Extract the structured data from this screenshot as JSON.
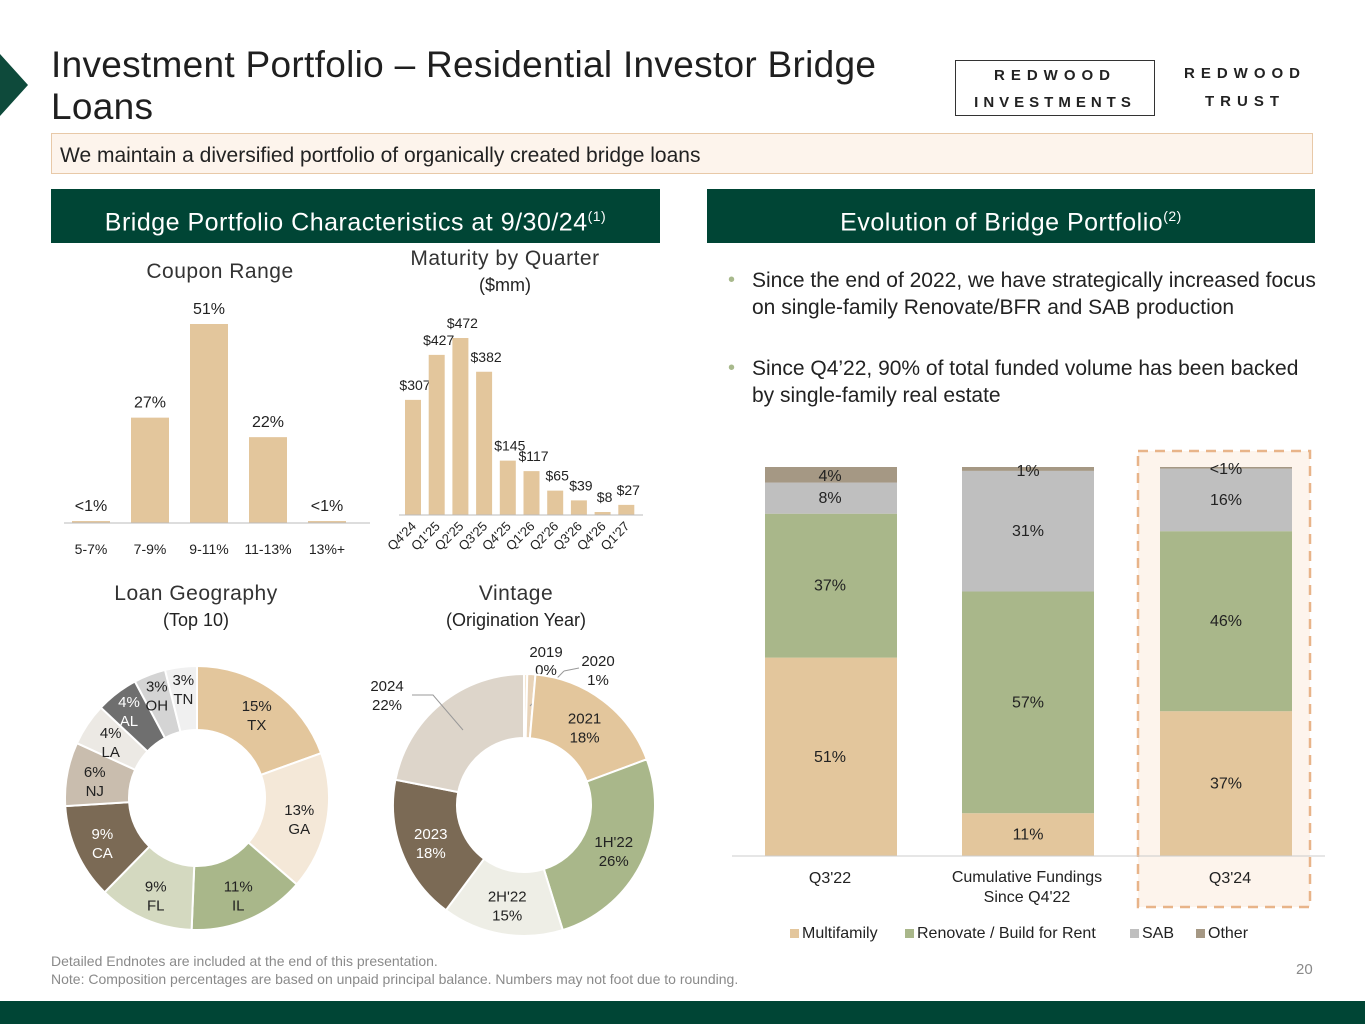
{
  "title": "Investment Portfolio – Residential Investor Bridge Loans",
  "logos": {
    "ri_line1": "REDWOOD",
    "ri_line2": "INVESTMENTS",
    "rt_line1": "REDWOOD",
    "rt_line2": "TRUST"
  },
  "banner": "We maintain a diversified portfolio of organically created bridge loans",
  "left_header": {
    "text": "Bridge Portfolio Characteristics at 9/30/24",
    "sup": "(1)"
  },
  "right_header": {
    "text": "Evolution of Bridge Portfolio",
    "sup": "(2)"
  },
  "bullets": [
    "Since the end of 2022, we have strategically increased focus on single-family Renovate/BFR and SAB production",
    "Since Q4’22, 90% of total funded volume has been backed by single-family real estate"
  ],
  "colors": {
    "dark_green": "#004535",
    "tan": "#e3c69c",
    "sage": "#a9b78a",
    "grey": "#bfbfbf",
    "taupe": "#a59884",
    "highlight": "#e8b489"
  },
  "chart_data": [
    {
      "id": "coupon",
      "type": "bar",
      "title": "Coupon Range",
      "categories": [
        "5-7%",
        "7-9%",
        "9-11%",
        "11-13%",
        "13%+"
      ],
      "values": [
        0.5,
        27,
        51,
        22,
        0.5
      ],
      "labels": [
        "<1%",
        "27%",
        "51%",
        "22%",
        "<1%"
      ],
      "ylim": [
        0,
        51
      ]
    },
    {
      "id": "maturity",
      "type": "bar",
      "title": "Maturity by Quarter",
      "subtitle": "($mm)",
      "categories": [
        "Q4'24",
        "Q1'25",
        "Q2'25",
        "Q3'25",
        "Q4'25",
        "Q1'26",
        "Q2'26",
        "Q3'26",
        "Q4'26",
        "Q1'27"
      ],
      "values": [
        307,
        427,
        472,
        382,
        145,
        117,
        65,
        39,
        8,
        27
      ],
      "labels": [
        "$307",
        "$427",
        "$472",
        "$382",
        "$145",
        "$117",
        "$65",
        "$39",
        "$8",
        "$27"
      ],
      "ylim": [
        0,
        472
      ]
    },
    {
      "id": "geography",
      "type": "pie",
      "title": "Loan Geography",
      "subtitle": "(Top 10)",
      "slices": [
        {
          "pct_label": "15%",
          "name": "TX",
          "value": 15,
          "color": "#e3c69c"
        },
        {
          "pct_label": "13%",
          "name": "GA",
          "value": 13,
          "color": "#f4e8d8"
        },
        {
          "pct_label": "11%",
          "name": "IL",
          "value": 11,
          "color": "#a9b78a"
        },
        {
          "pct_label": "9%",
          "name": "FL",
          "value": 9,
          "color": "#d4d9c0"
        },
        {
          "pct_label": "9%",
          "name": "CA",
          "value": 9,
          "color": "#7b6a55"
        },
        {
          "pct_label": "6%",
          "name": "NJ",
          "value": 6,
          "color": "#c9bdae"
        },
        {
          "pct_label": "4%",
          "name": "LA",
          "value": 4,
          "color": "#ece9e4"
        },
        {
          "pct_label": "4%",
          "name": "AL",
          "value": 4,
          "color": "#6f6f6f"
        },
        {
          "pct_label": "3%",
          "name": "OH",
          "value": 3,
          "color": "#d4d4d4"
        },
        {
          "pct_label": "3%",
          "name": "TN",
          "value": 3,
          "color": "#f0f0f0"
        }
      ]
    },
    {
      "id": "vintage",
      "type": "pie",
      "title": "Vintage",
      "subtitle": "(Origination Year)",
      "slices": [
        {
          "name": "2019",
          "pct_label": "0%",
          "value": 0.4,
          "color": "#f5e6d0"
        },
        {
          "name": "2020",
          "pct_label": "1%",
          "value": 1,
          "color": "#e8d3b8"
        },
        {
          "name": "2021",
          "pct_label": "18%",
          "value": 18,
          "color": "#e3c69c"
        },
        {
          "name": "1H'22",
          "pct_label": "26%",
          "value": 26,
          "color": "#a9b78a"
        },
        {
          "name": "2H'22",
          "pct_label": "15%",
          "value": 15,
          "color": "#eeeee6"
        },
        {
          "name": "2023",
          "pct_label": "18%",
          "value": 18,
          "color": "#7b6a55"
        },
        {
          "name": "2024",
          "pct_label": "22%",
          "value": 22,
          "color": "#ddd5ca"
        }
      ]
    },
    {
      "id": "evolution",
      "type": "bar",
      "stacked": true,
      "categories": [
        "Q3'22",
        "Cumulative Fundings Since Q4'22",
        "Q3'24"
      ],
      "series": [
        {
          "name": "Multifamily",
          "values": [
            51,
            11,
            37
          ],
          "labels": [
            "51%",
            "11%",
            "37%"
          ],
          "color": "#e3c69c"
        },
        {
          "name": "Renovate / Build for Rent",
          "values": [
            37,
            57,
            46
          ],
          "labels": [
            "37%",
            "57%",
            "46%"
          ],
          "color": "#a9b78a"
        },
        {
          "name": "SAB",
          "values": [
            8,
            31,
            16
          ],
          "labels": [
            "8%",
            "31%",
            "16%"
          ],
          "color": "#bfbfbf"
        },
        {
          "name": "Other",
          "values": [
            4,
            1,
            0.4
          ],
          "labels": [
            "4%",
            "1%",
            "<1%"
          ],
          "color": "#a59884"
        }
      ],
      "ylim": [
        0,
        100
      ],
      "highlighted_category": "Q3'24"
    }
  ],
  "footnotes": [
    "Detailed Endnotes are included at the end of this presentation.",
    "Note: Composition percentages are based on unpaid principal balance. Numbers may not foot due to rounding."
  ],
  "page_number": "20"
}
